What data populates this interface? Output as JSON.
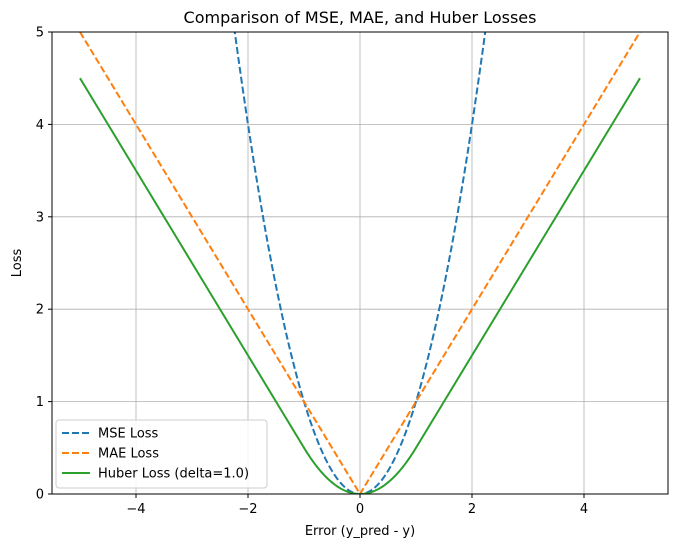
{
  "chart_data": {
    "type": "line",
    "title": "Comparison of MSE, MAE, and Huber Losses",
    "xlabel": "Error (y_pred - y)",
    "ylabel": "Loss",
    "xlim": [
      -5.5,
      5.5
    ],
    "ylim": [
      0,
      5
    ],
    "x_domain": [
      -5,
      5
    ],
    "xticks": [
      -4,
      -2,
      0,
      2,
      4
    ],
    "xtick_labels": [
      "−4",
      "−2",
      "0",
      "2",
      "4"
    ],
    "yticks": [
      0,
      1,
      2,
      3,
      4,
      5
    ],
    "ytick_labels": [
      "0",
      "1",
      "2",
      "3",
      "4",
      "5"
    ],
    "grid": true,
    "legend_position": "lower-left",
    "series": [
      {
        "name": "MSE Loss",
        "function": "e^2",
        "color": "#1f77b4",
        "dashed": true
      },
      {
        "name": "MAE Loss",
        "function": "|e|",
        "color": "#ff7f0e",
        "dashed": true
      },
      {
        "name": "Huber Loss (delta=1.0)",
        "function": "0.5*e^2 if |e|<=1 else |e|-0.5",
        "delta": 1.0,
        "color": "#2ca02c",
        "dashed": false
      }
    ]
  }
}
